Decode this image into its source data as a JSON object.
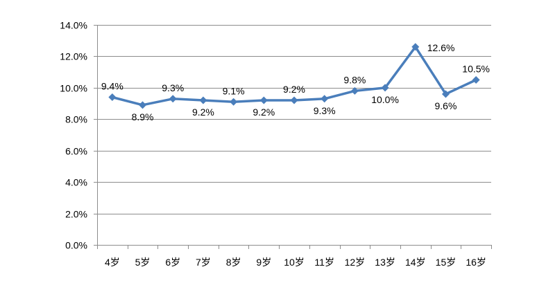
{
  "chart_data": {
    "type": "line",
    "title": "",
    "xlabel": "",
    "ylabel": "",
    "categories": [
      "4岁",
      "5岁",
      "6岁",
      "7岁",
      "8岁",
      "9岁",
      "10岁",
      "11岁",
      "12岁",
      "13岁",
      "14岁",
      "15岁",
      "16岁"
    ],
    "series": [
      {
        "values": [
          9.4,
          8.9,
          9.3,
          9.2,
          9.1,
          9.2,
          9.2,
          9.3,
          9.8,
          10.0,
          12.6,
          9.6,
          10.5
        ],
        "labels": [
          "9.4%",
          "8.9%",
          "9.3%",
          "9.2%",
          "9.1%",
          "9.2%",
          "9.2%",
          "9.3%",
          "9.8%",
          "10.0%",
          "12.6%",
          "9.6%",
          "10.5%"
        ],
        "color": "#4a7ebb",
        "marker": "diamond"
      }
    ],
    "ylim": [
      0,
      14
    ],
    "yticks": [
      0,
      2,
      4,
      6,
      8,
      10,
      12,
      14
    ],
    "ytick_labels": [
      "0.0%",
      "2.0%",
      "4.0%",
      "6.0%",
      "8.0%",
      "10.0%",
      "12.0%",
      "14.0%"
    ],
    "grid": true,
    "legend": "none",
    "label_positions": [
      "above",
      "below",
      "above",
      "below",
      "above",
      "below",
      "above",
      "below",
      "above",
      "below",
      "right",
      "below",
      "above"
    ]
  }
}
